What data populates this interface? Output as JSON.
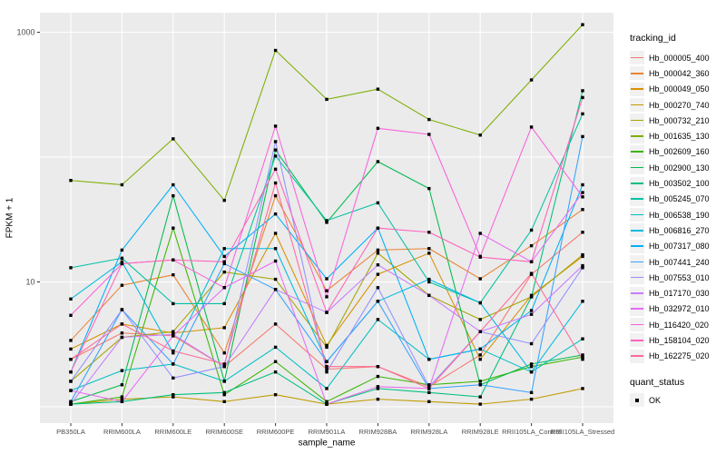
{
  "chart_data": {
    "type": "line",
    "xlabel": "sample_name",
    "ylabel": "FPKM + 1",
    "y_scale": "log10",
    "x_categories": [
      "PB350LA",
      "RRIM600LA",
      "RRIM600LE",
      "RRIM600SE",
      "RRIM600PE",
      "RRIM901LA",
      "RRIM928BA",
      "RRIM928LA",
      "RRIM928LE",
      "RRII105LA_Control",
      "RRII105LA_Stressed"
    ],
    "y_ticks": [
      {
        "value": 10,
        "label": "10"
      },
      {
        "value": 1000,
        "label": "1000"
      }
    ],
    "y_gridline_values": [
      1,
      10,
      100,
      1000
    ],
    "ylim": [
      0.74,
      1430
    ],
    "legend_position": "right",
    "grid": true,
    "series": [
      {
        "name": "Hb_000005_400",
        "color": "#F8766D",
        "values": [
          2.4,
          3.9,
          3.7,
          2.1,
          4.6,
          2.0,
          2.1,
          1.45,
          2.6,
          11.5,
          25
        ]
      },
      {
        "name": "Hb_000042_360",
        "color": "#EA8331",
        "values": [
          3.4,
          9.4,
          11.4,
          2.7,
          49,
          8.5,
          18,
          18.5,
          10.6,
          19.5,
          38
        ]
      },
      {
        "name": "Hb_000049_050",
        "color": "#D89000",
        "values": [
          2.9,
          4.6,
          3.9,
          4.3,
          24.5,
          3.1,
          11.5,
          17,
          2.4,
          7.8,
          16
        ]
      },
      {
        "name": "Hb_000270_740",
        "color": "#C09B00",
        "values": [
          1.05,
          1.15,
          1.2,
          1.1,
          1.25,
          1.05,
          1.15,
          1.1,
          1.05,
          1.15,
          1.4
        ]
      },
      {
        "name": "Hb_000732_210",
        "color": "#A3A500",
        "values": [
          1.6,
          3.6,
          4.0,
          12,
          10.5,
          3.0,
          17,
          7.8,
          5.0,
          7.6,
          16.5
        ]
      },
      {
        "name": "Hb_001635_130",
        "color": "#7CAE00",
        "values": [
          65,
          60,
          140,
          45,
          715,
          290,
          350,
          200,
          150,
          415,
          1150
        ]
      },
      {
        "name": "Hb_002609_160",
        "color": "#39B600",
        "values": [
          1.05,
          1.2,
          27,
          1.25,
          2.3,
          1.1,
          1.75,
          1.5,
          1.6,
          2.1,
          2.5
        ]
      },
      {
        "name": "Hb_002900_130",
        "color": "#00BB4E",
        "values": [
          1.1,
          1.5,
          49,
          1.6,
          114,
          30,
          92,
          56,
          1.5,
          2.2,
          2.6
        ]
      },
      {
        "name": "Hb_003502_100",
        "color": "#00BF7D",
        "values": [
          1.05,
          1.1,
          1.25,
          1.3,
          1.9,
          1.05,
          1.4,
          1.3,
          1.2,
          7.6,
          340
        ]
      },
      {
        "name": "Hb_005245_070",
        "color": "#00C1A3",
        "values": [
          13,
          15.5,
          6.7,
          6.7,
          102,
          31,
          43,
          10,
          6.8,
          26,
          222
        ]
      },
      {
        "name": "Hb_006538_190",
        "color": "#00BFC4",
        "values": [
          1.35,
          1.95,
          2.2,
          1.6,
          3.0,
          1.4,
          5.0,
          2.4,
          2.9,
          1.9,
          3.5
        ]
      },
      {
        "name": "Hb_006816_270",
        "color": "#00BAE0",
        "values": [
          7.3,
          14.5,
          2.7,
          18.5,
          18.5,
          2.3,
          7.0,
          10.5,
          6.8,
          1.9,
          7.0
        ]
      },
      {
        "name": "Hb_007317_080",
        "color": "#00B0F6",
        "values": [
          1.9,
          18,
          60,
          16,
          35,
          10.6,
          27,
          2.4,
          2.9,
          5.9,
          60
        ]
      },
      {
        "name": "Hb_007441_240",
        "color": "#35A2FF",
        "values": [
          1.1,
          6.0,
          2.2,
          14,
          8.7,
          2.3,
          7.0,
          1.4,
          1.5,
          1.3,
          146
        ]
      },
      {
        "name": "Hb_007553_010",
        "color": "#9590FF",
        "values": [
          1.6,
          6.0,
          1.7,
          2.1,
          133,
          1.9,
          9.0,
          1.45,
          4.0,
          3.2,
          13
        ]
      },
      {
        "name": "Hb_017170_030",
        "color": "#C77CFF",
        "values": [
          1.05,
          3.6,
          3.8,
          2.1,
          8.7,
          5.7,
          13.7,
          7.8,
          4.0,
          5.5,
          13.5
        ]
      },
      {
        "name": "Hb_032972_010",
        "color": "#E76BF3",
        "values": [
          1.35,
          1.1,
          3.7,
          9.0,
          14.7,
          1.05,
          1.45,
          1.4,
          24.5,
          14.5,
          52
        ]
      },
      {
        "name": "Hb_116420_020",
        "color": "#FA62DB",
        "values": [
          5.4,
          14,
          15,
          9.0,
          177,
          7.6,
          170,
          152,
          16,
          174,
          48
        ]
      },
      {
        "name": "Hb_158104_020",
        "color": "#FF62BC",
        "values": [
          1.9,
          14,
          15,
          14.5,
          80,
          5.7,
          27,
          25,
          15.8,
          14.5,
          300
        ]
      },
      {
        "name": "Hb_162275_020",
        "color": "#FF6A98",
        "values": [
          2.4,
          4.6,
          2.8,
          2.2,
          62,
          2.1,
          2.1,
          1.4,
          4.0,
          11.7,
          2.4
        ]
      }
    ]
  },
  "legend": {
    "tracking_title": "tracking_id",
    "quant_title": "quant_status",
    "quant_items": [
      {
        "label": "OK",
        "marker": "black-square"
      }
    ]
  },
  "colors": {
    "panel_bg": "#EBEBEB",
    "grid": "#FFFFFF",
    "point": "#000000",
    "tick_mark": "#333333",
    "tick_text": "#4D4D4D",
    "legend_key_bg": "#F1F1F1",
    "background": "#FFFFFF"
  }
}
